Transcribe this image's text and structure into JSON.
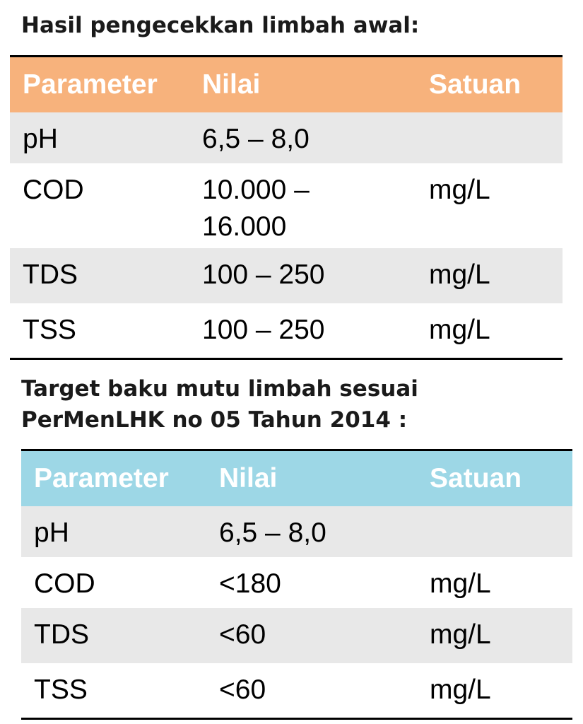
{
  "initial": {
    "heading": "Hasil pengecekkan limbah awal:",
    "header_color": "#f7b27c",
    "columns": [
      "Parameter",
      "Nilai",
      "Satuan"
    ],
    "rows": [
      {
        "parameter": "pH",
        "nilai": "6,5 – 8,0",
        "satuan": ""
      },
      {
        "parameter": "COD",
        "nilai": "10.000 – 16.000",
        "satuan": "mg/L"
      },
      {
        "parameter": "TDS",
        "nilai": "100 – 250",
        "satuan": "mg/L"
      },
      {
        "parameter": "TSS",
        "nilai": "100 – 250",
        "satuan": "mg/L"
      }
    ]
  },
  "target": {
    "heading_line1": "Target baku mutu limbah sesuai",
    "heading_line2": "PerMenLHK no 05 Tahun 2014 :",
    "header_color": "#9dd7e6",
    "columns": [
      "Parameter",
      "Nilai",
      "Satuan"
    ],
    "rows": [
      {
        "parameter": "pH",
        "nilai": "6,5 – 8,0",
        "satuan": ""
      },
      {
        "parameter": "COD",
        "nilai": "<180",
        "satuan": "mg/L"
      },
      {
        "parameter": "TDS",
        "nilai": "<60",
        "satuan": "mg/L"
      },
      {
        "parameter": "TSS",
        "nilai": "<60",
        "satuan": "mg/L"
      }
    ]
  }
}
